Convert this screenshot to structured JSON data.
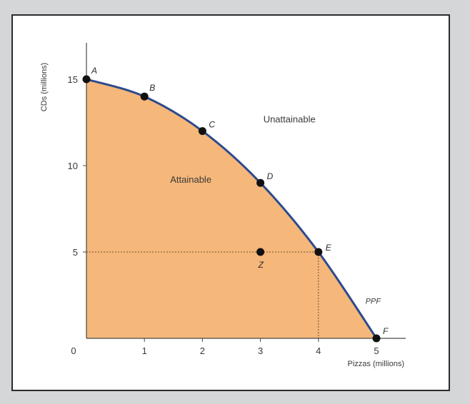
{
  "chart_data": {
    "type": "line",
    "title": "",
    "xlabel": "Pizzas (millions)",
    "ylabel": "CDs (millions)",
    "xlim": [
      0,
      5.5
    ],
    "ylim": [
      0,
      17
    ],
    "x_ticks": [
      0,
      1,
      2,
      3,
      4,
      5
    ],
    "y_ticks": [
      5,
      10,
      15
    ],
    "origin_label": "0",
    "grid": false,
    "series": [
      {
        "name": "PPF",
        "color": "#2c4a8c",
        "points": [
          {
            "label": "A",
            "x": 0,
            "y": 15
          },
          {
            "label": "B",
            "x": 1,
            "y": 14
          },
          {
            "label": "C",
            "x": 2,
            "y": 12
          },
          {
            "label": "D",
            "x": 3,
            "y": 9
          },
          {
            "label": "E",
            "x": 4,
            "y": 5
          },
          {
            "label": "F",
            "x": 5,
            "y": 0
          }
        ]
      }
    ],
    "extra_points": [
      {
        "label": "Z",
        "x": 3,
        "y": 5
      }
    ],
    "reference_lines": {
      "x": 4,
      "y": 5
    },
    "regions": {
      "attainable": {
        "label": "Attainable",
        "x": 1.8,
        "y": 9,
        "fill": "#f5b77a"
      },
      "unattainable": {
        "label": "Unattainable",
        "x": 3.5,
        "y": 12.5
      }
    },
    "curve_label": {
      "label": "PPF",
      "x": 5,
      "y": 2
    }
  }
}
